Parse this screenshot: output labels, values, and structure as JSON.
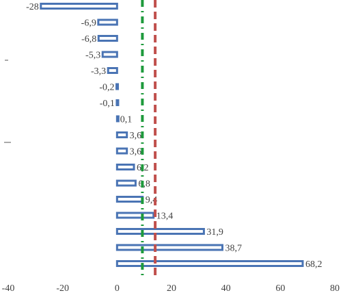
{
  "chart_data": {
    "type": "bar",
    "orientation": "horizontal",
    "values": [
      -28,
      -6.9,
      -6.8,
      -5.3,
      -3.3,
      -0.2,
      -0.1,
      0.1,
      3.6,
      3.6,
      6.2,
      6.8,
      9.4,
      13.4,
      31.9,
      38.7,
      68.2
    ],
    "value_labels": [
      "-28",
      "-6,9",
      "-6,8",
      "-5,3",
      "-3,3",
      "-0,2",
      "-0,1",
      "0,1",
      "3,6",
      "3,6",
      "6,2",
      "6,8",
      "9,4",
      "13,4",
      "31,9",
      "38,7",
      "68,2"
    ],
    "xlim": [
      -40,
      80
    ],
    "xticks": [
      -40,
      -20,
      0,
      20,
      40,
      60,
      80
    ],
    "xtick_labels": [
      "-40",
      "-20",
      "0",
      "20",
      "40",
      "60",
      "80"
    ],
    "reference_lines": [
      {
        "value": 9.3,
        "color": "#1e9a3c",
        "style": "dash-dot"
      },
      {
        "value": 14,
        "color": "#c0504d",
        "style": "dashed"
      }
    ],
    "bar_color": "#4a74b4",
    "grid": false,
    "legend": "none"
  }
}
